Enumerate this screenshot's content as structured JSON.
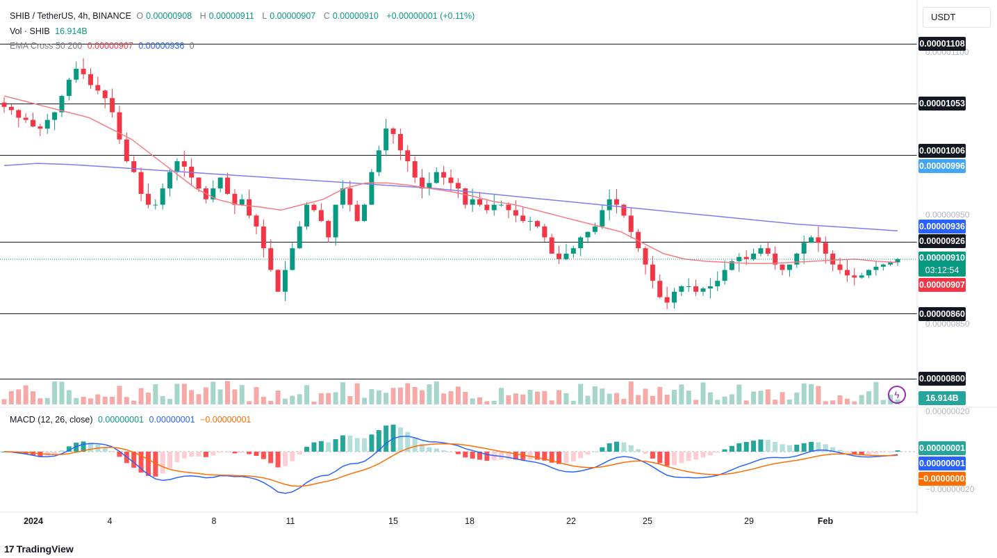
{
  "header": {
    "symbol": "SHIB / TetherUS, 4h, BINANCE",
    "o_label": "O",
    "o_value": "0.00000908",
    "h_label": "H",
    "h_value": "0.00000911",
    "l_label": "L",
    "l_value": "0.00000907",
    "c_label": "C",
    "c_value": "0.00000910",
    "change": "+0.00000001 (+0.11%)",
    "vol_label": "Vol · SHIB",
    "vol_value": "16.914B",
    "ema_label": "EMA Cross 50 200",
    "ema_fast": "0.00000907",
    "ema_slow": "0.00000936",
    "ema_extra": "0"
  },
  "currency_button": "USDT",
  "colors": {
    "up": "#089981",
    "down": "#f23645",
    "ema_fast": "#f77c80",
    "ema_slow": "#7e7cf0",
    "macd": "#2962ff",
    "signal": "#ff6d00"
  },
  "chart_data": [
    {
      "type": "candlestick",
      "title": "SHIB / TetherUS, 4h, BINANCE",
      "ylim": [
        8e-06,
        1.108e-05
      ],
      "x_tick_labels": [
        "2024",
        "4",
        "8",
        "11",
        "15",
        "18",
        "22",
        "25",
        "29",
        "Feb"
      ],
      "axis_labels": [
        "0.00001100",
        "0.00000950",
        "0.00000850"
      ],
      "horizontal_levels": [
        "0.00001108",
        "0.00001053",
        "0.00001006",
        "0.00000926",
        "0.00000860",
        "0.00000800"
      ],
      "price_tags": {
        "ema_slow": "0.00000996",
        "ema_slow_current": "0.00000936",
        "last_price": "0.00000910",
        "countdown": "03:12:54",
        "ema_fast_current": "0.00000907",
        "volume": "16.914B"
      },
      "close_series": [
        1.05e-05,
        1.047e-05,
        1.04e-05,
        1.038e-05,
        1.032e-05,
        1.03e-05,
        1.038e-05,
        1.045e-05,
        1.06e-05,
        1.075e-05,
        1.085e-05,
        1.08e-05,
        1.07e-05,
        1.065e-05,
        1.058e-05,
        1.045e-05,
        1.02e-05,
        1e-05,
        9.9e-06,
        9.7e-06,
        9.6e-06,
        9.6e-06,
        9.75e-06,
        9.9e-06,
        1e-05,
        9.95e-06,
        9.85e-06,
        9.75e-06,
        9.65e-06,
        9.75e-06,
        9.85e-06,
        9.7e-06,
        9.6e-06,
        9.65e-06,
        9.5e-06,
        9.4e-06,
        9.2e-06,
        9e-06,
        8.8e-06,
        9e-06,
        9.2e-06,
        9.4e-06,
        9.6e-06,
        9.55e-06,
        9.45e-06,
        9.3e-06,
        9.6e-06,
        9.75e-06,
        9.6e-06,
        9.45e-06,
        9.6e-06,
        9.9e-06,
        1.01e-05,
        1.03e-05,
        1.025e-05,
        1.01e-05,
        1e-05,
        9.85e-06,
        9.75e-06,
        9.8e-06,
        9.9e-06,
        9.85e-06,
        9.8e-06,
        9.75e-06,
        9.6e-06,
        9.65e-06,
        9.6e-06,
        9.55e-06,
        9.6e-06,
        9.6e-06,
        9.55e-06,
        9.5e-06,
        9.45e-06,
        9.45e-06,
        9.4e-06,
        9.3e-06,
        9.15e-06,
        9.1e-06,
        9.15e-06,
        9.2e-06,
        9.3e-06,
        9.35e-06,
        9.4e-06,
        9.55e-06,
        9.65e-06,
        9.6e-06,
        9.5e-06,
        9.35e-06,
        9.2e-06,
        9.05e-06,
        8.9e-06,
        8.75e-06,
        8.7e-06,
        8.8e-06,
        8.85e-06,
        8.85e-06,
        8.8e-06,
        8.83e-06,
        8.85e-06,
        8.9e-06,
        9e-06,
        9.08e-06,
        9.12e-06,
        9.1e-06,
        9.15e-06,
        9.2e-06,
        9.15e-06,
        9.05e-06,
        9e-06,
        9.05e-06,
        9.15e-06,
        9.25e-06,
        9.3e-06,
        9.25e-06,
        9.15e-06,
        9.05e-06,
        9e-06,
        8.95e-06,
        8.93e-06,
        8.95e-06,
        9e-06,
        9.03e-06,
        9.05e-06,
        9.07e-06,
        9.1e-06
      ],
      "ema_fast_series": [
        1.06e-05,
        1.055e-05,
        1.05e-05,
        1.045e-05,
        1.04e-05,
        1.03e-05,
        1.02e-05,
        1.005e-05,
        9.9e-06,
        9.75e-06,
        9.65e-06,
        9.6e-06,
        9.58e-06,
        9.55e-06,
        9.6e-06,
        9.65e-06,
        9.75e-06,
        9.8e-06,
        9.8e-06,
        9.78e-06,
        9.75e-06,
        9.72e-06,
        9.68e-06,
        9.63e-06,
        9.6e-06,
        9.55e-06,
        9.5e-06,
        9.45e-06,
        9.4e-06,
        9.35e-06,
        9.25e-06,
        9.15e-06,
        9.1e-06,
        9.08e-06,
        9.07e-06,
        9.06e-06,
        9.06e-06,
        9.07e-06,
        9.08e-06,
        9.09e-06,
        9.1e-06,
        9.08e-06,
        9.07e-06
      ],
      "ema_slow_series": [
        9.96e-06,
        9.98e-06,
        9.97e-06,
        9.95e-06,
        9.93e-06,
        9.91e-06,
        9.89e-06,
        9.87e-06,
        9.85e-06,
        9.83e-06,
        9.81e-06,
        9.79e-06,
        9.77e-06,
        9.75e-06,
        9.72e-06,
        9.69e-06,
        9.66e-06,
        9.63e-06,
        9.6e-06,
        9.57e-06,
        9.54e-06,
        9.51e-06,
        9.48e-06,
        9.45e-06,
        9.42e-06,
        9.4e-06,
        9.38e-06,
        9.36e-06
      ]
    },
    {
      "type": "bar",
      "title": "Vol · SHIB",
      "series_name": "Volume",
      "last_value": "16.914B"
    },
    {
      "type": "line",
      "title": "MACD (12, 26, close)",
      "values": {
        "histogram": "0.00000001",
        "macd": "0.00000001",
        "signal": "−0.00000001"
      },
      "axis_labels": [
        "0.00000020",
        "−0.00000020"
      ],
      "price_tags": {
        "histogram": "0.00000001",
        "macd": "0.00000001",
        "signal": "−0.00000001"
      }
    }
  ],
  "footer": {
    "brand": "TradingView"
  }
}
